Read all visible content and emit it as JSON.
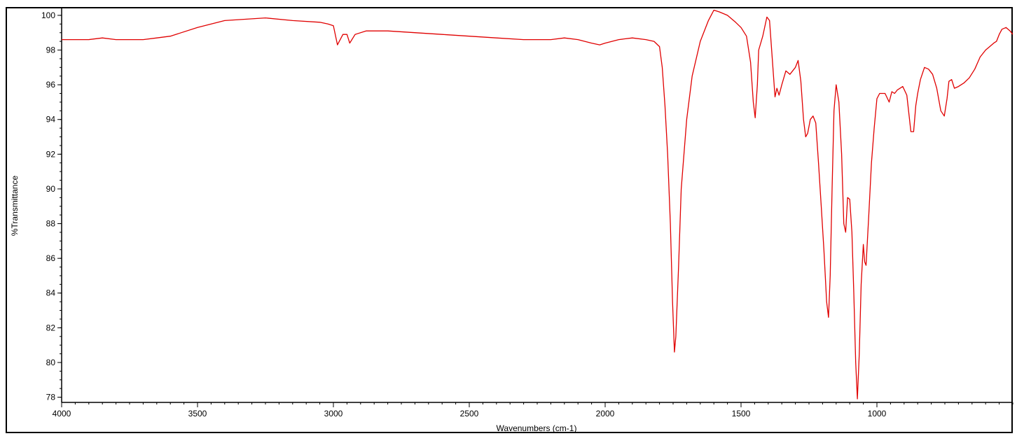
{
  "chart_data": {
    "type": "line",
    "title": "",
    "xlabel": "Wavenumbers (cm-1)",
    "ylabel": "%Transmittance",
    "xlim": [
      4000,
      500
    ],
    "ylim": [
      77.7,
      100.4
    ],
    "x_reversed": true,
    "x_ticks": [
      4000,
      3500,
      3000,
      2500,
      2000,
      1500,
      1000
    ],
    "y_ticks": [
      78,
      80,
      82,
      84,
      86,
      88,
      90,
      92,
      94,
      96,
      98,
      100
    ],
    "grid": false,
    "series_color": "#e00000",
    "series": [
      {
        "x": [
          4000,
          3900,
          3850,
          3800,
          3700,
          3650,
          3600,
          3500,
          3400,
          3300,
          3250,
          3150,
          3050,
          3020,
          3000,
          2985,
          2965,
          2950,
          2940,
          2920,
          2880,
          2800,
          2700,
          2600,
          2500,
          2400,
          2300,
          2200,
          2150,
          2100,
          2050,
          2020,
          2000,
          1950,
          1900,
          1850,
          1820,
          1800,
          1790,
          1780,
          1770,
          1760,
          1752,
          1745,
          1740,
          1730,
          1720,
          1700,
          1680,
          1650,
          1620,
          1600,
          1580,
          1550,
          1520,
          1500,
          1480,
          1465,
          1455,
          1448,
          1440,
          1435,
          1420,
          1405,
          1395,
          1385,
          1375,
          1368,
          1360,
          1350,
          1335,
          1320,
          1300,
          1290,
          1280,
          1270,
          1262,
          1255,
          1245,
          1235,
          1225,
          1215,
          1205,
          1195,
          1185,
          1178,
          1172,
          1165,
          1158,
          1150,
          1140,
          1130,
          1122,
          1115,
          1108,
          1100,
          1092,
          1085,
          1078,
          1072,
          1065,
          1058,
          1050,
          1045,
          1040,
          1030,
          1020,
          1010,
          1000,
          990,
          970,
          955,
          945,
          935,
          925,
          905,
          890,
          875,
          865,
          857,
          850,
          840,
          825,
          810,
          795,
          780,
          765,
          752,
          742,
          735,
          725,
          715,
          700,
          680,
          660,
          640,
          620,
          600,
          585,
          570,
          560,
          550,
          540,
          525,
          510,
          500
        ],
        "y": [
          98.6,
          98.6,
          98.7,
          98.6,
          98.6,
          98.7,
          98.8,
          99.3,
          99.7,
          99.8,
          99.85,
          99.7,
          99.6,
          99.5,
          99.4,
          98.3,
          98.9,
          98.9,
          98.4,
          98.9,
          99.1,
          99.1,
          99.0,
          98.9,
          98.8,
          98.7,
          98.6,
          98.6,
          98.7,
          98.6,
          98.4,
          98.3,
          98.4,
          98.6,
          98.7,
          98.6,
          98.5,
          98.2,
          97.0,
          94.8,
          92.0,
          88.0,
          83.5,
          80.6,
          81.5,
          85.5,
          90.0,
          94.0,
          96.5,
          98.5,
          99.7,
          100.3,
          100.2,
          100.0,
          99.6,
          99.3,
          98.8,
          97.3,
          95.0,
          94.1,
          96.0,
          98.0,
          98.8,
          99.9,
          99.7,
          97.5,
          95.3,
          95.8,
          95.4,
          96.0,
          96.8,
          96.6,
          97.0,
          97.4,
          96.2,
          94.0,
          93.0,
          93.2,
          94.0,
          94.2,
          93.8,
          91.5,
          89.0,
          86.5,
          83.5,
          82.6,
          85.0,
          90.0,
          94.5,
          96.0,
          95.0,
          92.0,
          88.0,
          87.5,
          89.5,
          89.4,
          87.5,
          84.0,
          80.0,
          77.9,
          80.5,
          84.5,
          86.8,
          85.8,
          85.6,
          88.5,
          91.5,
          93.5,
          95.2,
          95.5,
          95.5,
          95.0,
          95.6,
          95.5,
          95.7,
          95.9,
          95.4,
          93.3,
          93.3,
          94.8,
          95.5,
          96.3,
          97.0,
          96.9,
          96.6,
          95.8,
          94.5,
          94.2,
          95.2,
          96.2,
          96.3,
          95.8,
          95.9,
          96.1,
          96.4,
          96.9,
          97.6,
          98.0,
          98.2,
          98.4,
          98.5,
          98.9,
          99.2,
          99.3,
          99.1,
          98.9
        ]
      }
    ]
  }
}
